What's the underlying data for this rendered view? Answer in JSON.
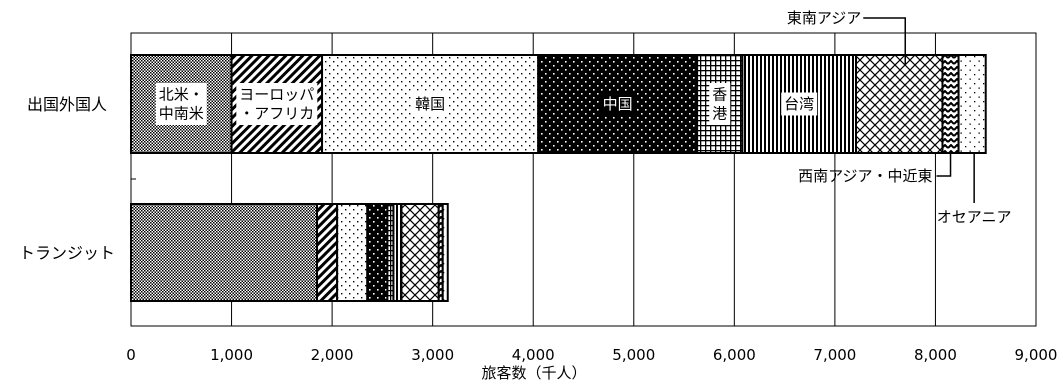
{
  "chart_data": {
    "type": "bar",
    "orientation": "horizontal",
    "stacked": true,
    "categories": [
      "出国外国人",
      "トランジット"
    ],
    "series": [
      {
        "name": "北米・中南米",
        "values": [
          1000,
          1850
        ],
        "pattern": "crosshatch-dense"
      },
      {
        "name": "ヨーロッパ・アフリカ",
        "values": [
          900,
          200
        ],
        "pattern": "diagonal"
      },
      {
        "name": "韓国",
        "values": [
          2150,
          300
        ],
        "pattern": "dots-light"
      },
      {
        "name": "中国",
        "values": [
          1580,
          200
        ],
        "pattern": "dots-dark"
      },
      {
        "name": "香港",
        "values": [
          450,
          60
        ],
        "pattern": "grid"
      },
      {
        "name": "台湾",
        "values": [
          1130,
          80
        ],
        "pattern": "vertical"
      },
      {
        "name": "東南アジア",
        "values": [
          860,
          370
        ],
        "pattern": "diamond"
      },
      {
        "name": "西南アジア・中近東",
        "values": [
          160,
          40
        ],
        "pattern": "zigzag"
      },
      {
        "name": "オセアニア",
        "values": [
          270,
          50
        ],
        "pattern": "dots-sparse"
      }
    ],
    "inside_labels": [
      {
        "series": 0,
        "lines": [
          "北米・",
          "中南米"
        ]
      },
      {
        "series": 1,
        "lines": [
          "ヨーロッパ",
          "・アフリカ"
        ]
      },
      {
        "series": 2,
        "lines": [
          "韓国"
        ]
      },
      {
        "series": 3,
        "lines": [
          "中国"
        ]
      },
      {
        "series": 4,
        "lines": [
          "香",
          "港"
        ]
      },
      {
        "series": 5,
        "lines": [
          "台湾"
        ]
      }
    ],
    "callouts": [
      {
        "series": 6,
        "text": "東南アジア"
      },
      {
        "series": 7,
        "text": "西南アジア・中近東"
      },
      {
        "series": 8,
        "text": "オセアニア"
      }
    ],
    "xlabel": "旅客数（千人）",
    "xlim": [
      0,
      9000
    ],
    "xticks": [
      0,
      1000,
      2000,
      3000,
      4000,
      5000,
      6000,
      7000,
      8000,
      9000
    ],
    "xtick_labels": [
      "0",
      "1,000",
      "2,000",
      "3,000",
      "4,000",
      "5,000",
      "6,000",
      "7,000",
      "8,000",
      "9,000"
    ],
    "grid": true,
    "legend": "none"
  }
}
